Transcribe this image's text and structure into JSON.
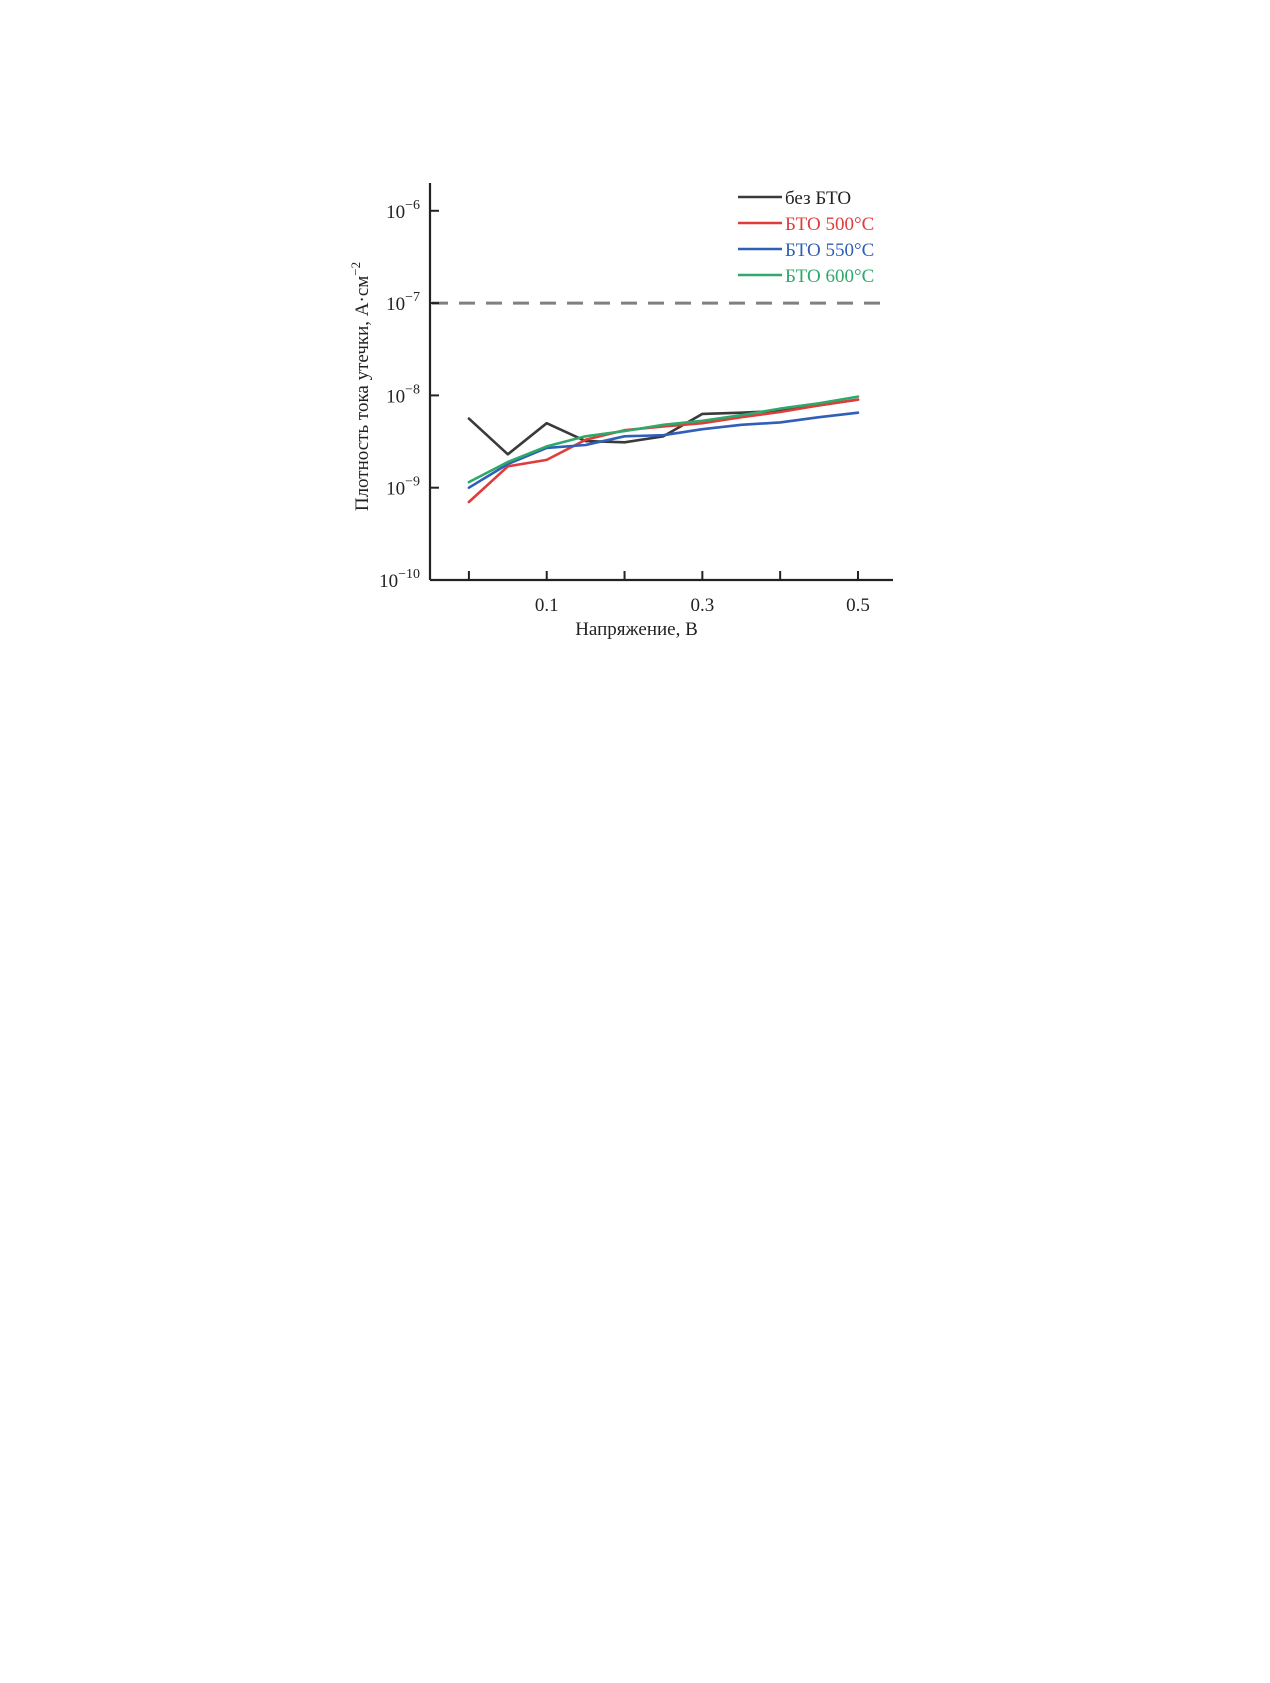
{
  "chart_data": {
    "type": "line",
    "xlabel": "Напряжение, В",
    "ylabel_main": "Плотность тока утечки, А·см",
    "ylabel_sup": "−2",
    "x_scale": "linear",
    "y_scale": "log",
    "xlim": [
      -0.05,
      0.545
    ],
    "ylim": [
      1e-10,
      2e-06
    ],
    "x_ticks": [
      {
        "value": 0.0,
        "label": ""
      },
      {
        "value": 0.1,
        "label": "0.1"
      },
      {
        "value": 0.2,
        "label": ""
      },
      {
        "value": 0.3,
        "label": "0.3"
      },
      {
        "value": 0.4,
        "label": ""
      },
      {
        "value": 0.5,
        "label": "0.5"
      }
    ],
    "y_ticks": [
      {
        "value": 1e-10,
        "base": "10",
        "exp": "−10"
      },
      {
        "value": 1e-09,
        "base": "10",
        "exp": "−9"
      },
      {
        "value": 1e-08,
        "base": "10",
        "exp": "−8"
      },
      {
        "value": 1e-07,
        "base": "10",
        "exp": "−7"
      },
      {
        "value": 1e-06,
        "base": "10",
        "exp": "−6"
      }
    ],
    "reference_line": {
      "y": 1e-07,
      "style": "dashed",
      "color": "#808080"
    },
    "grid": false,
    "legend_position": "top-right",
    "series": [
      {
        "name": "без БТО",
        "color": "#3a3a3a",
        "x": [
          0.0,
          0.05,
          0.1,
          0.15,
          0.2,
          0.25,
          0.3,
          0.35,
          0.4,
          0.45,
          0.5
        ],
        "y": [
          5.6e-09,
          2.3e-09,
          5e-09,
          3.2e-09,
          3.1e-09,
          3.6e-09,
          6.3e-09,
          6.5e-09,
          6.8e-09,
          7.8e-09,
          9e-09
        ]
      },
      {
        "name": "БТО 500°C",
        "color": "#e03c3c",
        "x": [
          0.0,
          0.05,
          0.1,
          0.15,
          0.2,
          0.25,
          0.3,
          0.35,
          0.4,
          0.45,
          0.5
        ],
        "y": [
          7e-10,
          1.7e-09,
          2e-09,
          3.3e-09,
          4.2e-09,
          4.6e-09,
          5e-09,
          5.8e-09,
          6.6e-09,
          7.8e-09,
          9e-09
        ]
      },
      {
        "name": "БТО 550°C",
        "color": "#2f5fb8",
        "x": [
          0.0,
          0.05,
          0.1,
          0.15,
          0.2,
          0.25,
          0.3,
          0.35,
          0.4,
          0.45,
          0.5
        ],
        "y": [
          1e-09,
          1.8e-09,
          2.7e-09,
          2.9e-09,
          3.6e-09,
          3.7e-09,
          4.3e-09,
          4.8e-09,
          5.1e-09,
          5.8e-09,
          6.5e-09
        ]
      },
      {
        "name": "БТО 600°C",
        "color": "#2ea86b",
        "x": [
          0.0,
          0.05,
          0.1,
          0.15,
          0.2,
          0.25,
          0.3,
          0.35,
          0.4,
          0.45,
          0.5
        ],
        "y": [
          1.15e-09,
          1.9e-09,
          2.8e-09,
          3.6e-09,
          4.1e-09,
          4.8e-09,
          5.3e-09,
          6.1e-09,
          7.2e-09,
          8.2e-09,
          9.7e-09
        ]
      }
    ]
  }
}
